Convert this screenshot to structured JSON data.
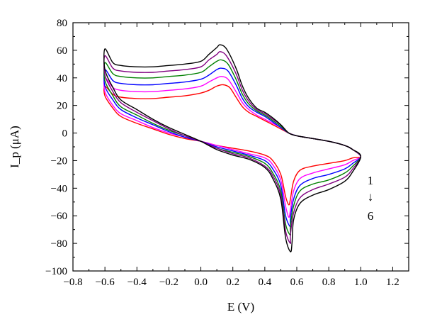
{
  "chart_data": {
    "type": "line",
    "title": "",
    "xlabel": "E (V)",
    "ylabel": "I_p (μA)",
    "xlim": [
      -0.8,
      1.3
    ],
    "ylim": [
      -100,
      80
    ],
    "x_ticks": [
      -0.8,
      -0.6,
      -0.4,
      -0.2,
      0.0,
      0.2,
      0.4,
      0.6,
      0.8,
      1.0,
      1.2
    ],
    "x_tick_labels": [
      "−0.8",
      "−0.6",
      "−0.4",
      "−0.2",
      "0.0",
      "0.2",
      "0.4",
      "0.6",
      "0.8",
      "1.0",
      "1.2"
    ],
    "y_ticks": [
      -100,
      -80,
      -60,
      -40,
      -20,
      0,
      20,
      40,
      60,
      80
    ],
    "y_tick_labels": [
      "−100",
      "−80",
      "−60",
      "−40",
      "−20",
      "0",
      "20",
      "40",
      "60",
      "80"
    ],
    "grid": false,
    "legend": "none",
    "annotations": {
      "first": "1",
      "arrow": "↓",
      "last": "6"
    },
    "series": [
      {
        "color": "#ff0000",
        "anodic_peak": 35,
        "cathodic_peak": -52,
        "points": [
          [
            -0.6,
            34
          ],
          [
            -0.55,
            28
          ],
          [
            -0.5,
            26
          ],
          [
            -0.4,
            25
          ],
          [
            -0.3,
            25
          ],
          [
            -0.2,
            26
          ],
          [
            -0.1,
            27
          ],
          [
            0.0,
            29
          ],
          [
            0.05,
            31
          ],
          [
            0.1,
            34
          ],
          [
            0.14,
            35
          ],
          [
            0.18,
            33
          ],
          [
            0.22,
            26
          ],
          [
            0.26,
            19
          ],
          [
            0.3,
            15
          ],
          [
            0.35,
            12
          ],
          [
            0.4,
            9
          ],
          [
            0.45,
            6
          ],
          [
            0.5,
            3
          ],
          [
            0.55,
            0
          ],
          [
            0.6,
            -2
          ],
          [
            0.7,
            -4
          ],
          [
            0.8,
            -6
          ],
          [
            0.9,
            -9
          ],
          [
            0.95,
            -12
          ],
          [
            1.0,
            -17
          ],
          [
            0.95,
            -18
          ],
          [
            0.9,
            -20
          ],
          [
            0.8,
            -22
          ],
          [
            0.7,
            -24
          ],
          [
            0.62,
            -27
          ],
          [
            0.58,
            -35
          ],
          [
            0.56,
            -48
          ],
          [
            0.55,
            -52
          ],
          [
            0.53,
            -46
          ],
          [
            0.5,
            -30
          ],
          [
            0.45,
            -20
          ],
          [
            0.4,
            -16
          ],
          [
            0.3,
            -13
          ],
          [
            0.2,
            -11
          ],
          [
            0.1,
            -9
          ],
          [
            0.0,
            -6
          ],
          [
            -0.1,
            -4
          ],
          [
            -0.2,
            -1
          ],
          [
            -0.3,
            3
          ],
          [
            -0.4,
            7
          ],
          [
            -0.5,
            12
          ],
          [
            -0.55,
            18
          ],
          [
            -0.6,
            27
          ]
        ]
      },
      {
        "color": "#ff00ff",
        "anodic_peak": 41,
        "cathodic_peak": -61,
        "points": [
          [
            -0.6,
            40
          ],
          [
            -0.55,
            33
          ],
          [
            -0.5,
            31
          ],
          [
            -0.4,
            30
          ],
          [
            -0.3,
            30
          ],
          [
            -0.2,
            31
          ],
          [
            -0.1,
            32
          ],
          [
            0.0,
            34
          ],
          [
            0.05,
            37
          ],
          [
            0.1,
            40
          ],
          [
            0.13,
            41
          ],
          [
            0.17,
            39
          ],
          [
            0.22,
            30
          ],
          [
            0.26,
            22
          ],
          [
            0.3,
            17
          ],
          [
            0.35,
            13
          ],
          [
            0.4,
            10
          ],
          [
            0.45,
            7
          ],
          [
            0.5,
            4
          ],
          [
            0.55,
            0
          ],
          [
            0.6,
            -2
          ],
          [
            0.7,
            -4
          ],
          [
            0.8,
            -6
          ],
          [
            0.9,
            -9
          ],
          [
            0.95,
            -12
          ],
          [
            1.0,
            -17
          ],
          [
            0.95,
            -20
          ],
          [
            0.9,
            -23
          ],
          [
            0.8,
            -26
          ],
          [
            0.7,
            -29
          ],
          [
            0.62,
            -33
          ],
          [
            0.58,
            -42
          ],
          [
            0.56,
            -56
          ],
          [
            0.55,
            -61
          ],
          [
            0.53,
            -53
          ],
          [
            0.5,
            -34
          ],
          [
            0.45,
            -23
          ],
          [
            0.4,
            -18
          ],
          [
            0.3,
            -15
          ],
          [
            0.2,
            -12
          ],
          [
            0.1,
            -9
          ],
          [
            0.0,
            -6
          ],
          [
            -0.1,
            -3
          ],
          [
            -0.2,
            0
          ],
          [
            -0.3,
            4
          ],
          [
            -0.4,
            9
          ],
          [
            -0.5,
            14
          ],
          [
            -0.55,
            20
          ],
          [
            -0.6,
            30
          ]
        ]
      },
      {
        "color": "#0000ff",
        "anodic_peak": 47,
        "cathodic_peak": -68,
        "points": [
          [
            -0.6,
            46
          ],
          [
            -0.55,
            38
          ],
          [
            -0.5,
            36
          ],
          [
            -0.4,
            35
          ],
          [
            -0.3,
            35
          ],
          [
            -0.2,
            36
          ],
          [
            -0.1,
            37
          ],
          [
            0.0,
            39
          ],
          [
            0.05,
            42
          ],
          [
            0.1,
            46
          ],
          [
            0.13,
            47
          ],
          [
            0.17,
            45
          ],
          [
            0.22,
            35
          ],
          [
            0.26,
            25
          ],
          [
            0.3,
            19
          ],
          [
            0.35,
            15
          ],
          [
            0.4,
            12
          ],
          [
            0.45,
            8
          ],
          [
            0.5,
            4
          ],
          [
            0.55,
            0
          ],
          [
            0.6,
            -2
          ],
          [
            0.7,
            -4
          ],
          [
            0.8,
            -6
          ],
          [
            0.9,
            -9
          ],
          [
            0.95,
            -12
          ],
          [
            1.0,
            -17
          ],
          [
            0.95,
            -22
          ],
          [
            0.9,
            -26
          ],
          [
            0.8,
            -30
          ],
          [
            0.7,
            -33
          ],
          [
            0.62,
            -38
          ],
          [
            0.58,
            -48
          ],
          [
            0.56,
            -62
          ],
          [
            0.56,
            -68
          ],
          [
            0.53,
            -60
          ],
          [
            0.5,
            -38
          ],
          [
            0.45,
            -26
          ],
          [
            0.4,
            -20
          ],
          [
            0.3,
            -16
          ],
          [
            0.2,
            -13
          ],
          [
            0.1,
            -10
          ],
          [
            0.0,
            -6
          ],
          [
            -0.1,
            -3
          ],
          [
            -0.2,
            1
          ],
          [
            -0.3,
            6
          ],
          [
            -0.4,
            11
          ],
          [
            -0.5,
            17
          ],
          [
            -0.55,
            24
          ],
          [
            -0.6,
            34
          ]
        ]
      },
      {
        "color": "#008000",
        "anodic_peak": 53,
        "cathodic_peak": -74,
        "points": [
          [
            -0.6,
            51
          ],
          [
            -0.55,
            43
          ],
          [
            -0.5,
            41
          ],
          [
            -0.4,
            40
          ],
          [
            -0.3,
            40
          ],
          [
            -0.2,
            41
          ],
          [
            -0.1,
            42
          ],
          [
            0.0,
            44
          ],
          [
            0.05,
            48
          ],
          [
            0.1,
            52
          ],
          [
            0.13,
            53
          ],
          [
            0.17,
            50
          ],
          [
            0.22,
            39
          ],
          [
            0.26,
            28
          ],
          [
            0.3,
            21
          ],
          [
            0.35,
            16
          ],
          [
            0.4,
            13
          ],
          [
            0.45,
            9
          ],
          [
            0.5,
            5
          ],
          [
            0.55,
            0
          ],
          [
            0.6,
            -2
          ],
          [
            0.7,
            -4
          ],
          [
            0.8,
            -6
          ],
          [
            0.9,
            -9
          ],
          [
            0.95,
            -12
          ],
          [
            1.0,
            -17
          ],
          [
            0.95,
            -24
          ],
          [
            0.9,
            -29
          ],
          [
            0.8,
            -34
          ],
          [
            0.7,
            -37
          ],
          [
            0.62,
            -42
          ],
          [
            0.58,
            -53
          ],
          [
            0.56,
            -68
          ],
          [
            0.56,
            -74
          ],
          [
            0.53,
            -66
          ],
          [
            0.5,
            -42
          ],
          [
            0.45,
            -29
          ],
          [
            0.4,
            -22
          ],
          [
            0.3,
            -17
          ],
          [
            0.2,
            -14
          ],
          [
            0.1,
            -11
          ],
          [
            0.0,
            -6
          ],
          [
            -0.1,
            -2
          ],
          [
            -0.2,
            2
          ],
          [
            -0.3,
            7
          ],
          [
            -0.4,
            13
          ],
          [
            -0.5,
            19
          ],
          [
            -0.55,
            27
          ],
          [
            -0.6,
            38
          ]
        ]
      },
      {
        "color": "#800080",
        "anodic_peak": 59,
        "cathodic_peak": -80,
        "points": [
          [
            -0.6,
            56
          ],
          [
            -0.55,
            47
          ],
          [
            -0.5,
            45
          ],
          [
            -0.4,
            44
          ],
          [
            -0.3,
            44
          ],
          [
            -0.2,
            45
          ],
          [
            -0.1,
            46
          ],
          [
            0.0,
            48
          ],
          [
            0.05,
            53
          ],
          [
            0.1,
            57
          ],
          [
            0.12,
            59
          ],
          [
            0.16,
            56
          ],
          [
            0.22,
            43
          ],
          [
            0.26,
            31
          ],
          [
            0.3,
            23
          ],
          [
            0.35,
            17
          ],
          [
            0.4,
            14
          ],
          [
            0.45,
            10
          ],
          [
            0.5,
            6
          ],
          [
            0.55,
            0
          ],
          [
            0.6,
            -2
          ],
          [
            0.7,
            -4
          ],
          [
            0.8,
            -6
          ],
          [
            0.9,
            -9
          ],
          [
            0.95,
            -12
          ],
          [
            1.0,
            -17
          ],
          [
            0.95,
            -26
          ],
          [
            0.9,
            -32
          ],
          [
            0.8,
            -37
          ],
          [
            0.7,
            -41
          ],
          [
            0.62,
            -47
          ],
          [
            0.58,
            -58
          ],
          [
            0.56,
            -74
          ],
          [
            0.56,
            -80
          ],
          [
            0.53,
            -71
          ],
          [
            0.5,
            -45
          ],
          [
            0.45,
            -31
          ],
          [
            0.4,
            -24
          ],
          [
            0.3,
            -18
          ],
          [
            0.2,
            -15
          ],
          [
            0.1,
            -11
          ],
          [
            0.0,
            -6
          ],
          [
            -0.1,
            -2
          ],
          [
            -0.2,
            3
          ],
          [
            -0.3,
            9
          ],
          [
            -0.4,
            15
          ],
          [
            -0.5,
            22
          ],
          [
            -0.55,
            30
          ],
          [
            -0.6,
            42
          ]
        ]
      },
      {
        "color": "#000000",
        "anodic_peak": 64,
        "cathodic_peak": -86,
        "points": [
          [
            -0.6,
            61
          ],
          [
            -0.55,
            51
          ],
          [
            -0.5,
            49
          ],
          [
            -0.4,
            48
          ],
          [
            -0.3,
            48
          ],
          [
            -0.2,
            49
          ],
          [
            -0.1,
            50
          ],
          [
            0.0,
            52
          ],
          [
            0.05,
            57
          ],
          [
            0.1,
            62
          ],
          [
            0.12,
            64
          ],
          [
            0.16,
            61
          ],
          [
            0.22,
            47
          ],
          [
            0.26,
            34
          ],
          [
            0.3,
            25
          ],
          [
            0.35,
            18
          ],
          [
            0.4,
            15
          ],
          [
            0.45,
            11
          ],
          [
            0.5,
            6
          ],
          [
            0.55,
            0
          ],
          [
            0.6,
            -2
          ],
          [
            0.7,
            -4
          ],
          [
            0.8,
            -6
          ],
          [
            0.9,
            -9
          ],
          [
            0.95,
            -12
          ],
          [
            1.0,
            -17
          ],
          [
            0.95,
            -28
          ],
          [
            0.9,
            -35
          ],
          [
            0.8,
            -41
          ],
          [
            0.7,
            -45
          ],
          [
            0.62,
            -51
          ],
          [
            0.58,
            -63
          ],
          [
            0.57,
            -80
          ],
          [
            0.56,
            -86
          ],
          [
            0.53,
            -76
          ],
          [
            0.5,
            -48
          ],
          [
            0.45,
            -33
          ],
          [
            0.4,
            -25
          ],
          [
            0.3,
            -19
          ],
          [
            0.2,
            -16
          ],
          [
            0.1,
            -12
          ],
          [
            0.0,
            -6
          ],
          [
            -0.1,
            -1
          ],
          [
            -0.2,
            4
          ],
          [
            -0.3,
            10
          ],
          [
            -0.4,
            17
          ],
          [
            -0.5,
            24
          ],
          [
            -0.55,
            33
          ],
          [
            -0.6,
            46
          ]
        ]
      }
    ]
  }
}
